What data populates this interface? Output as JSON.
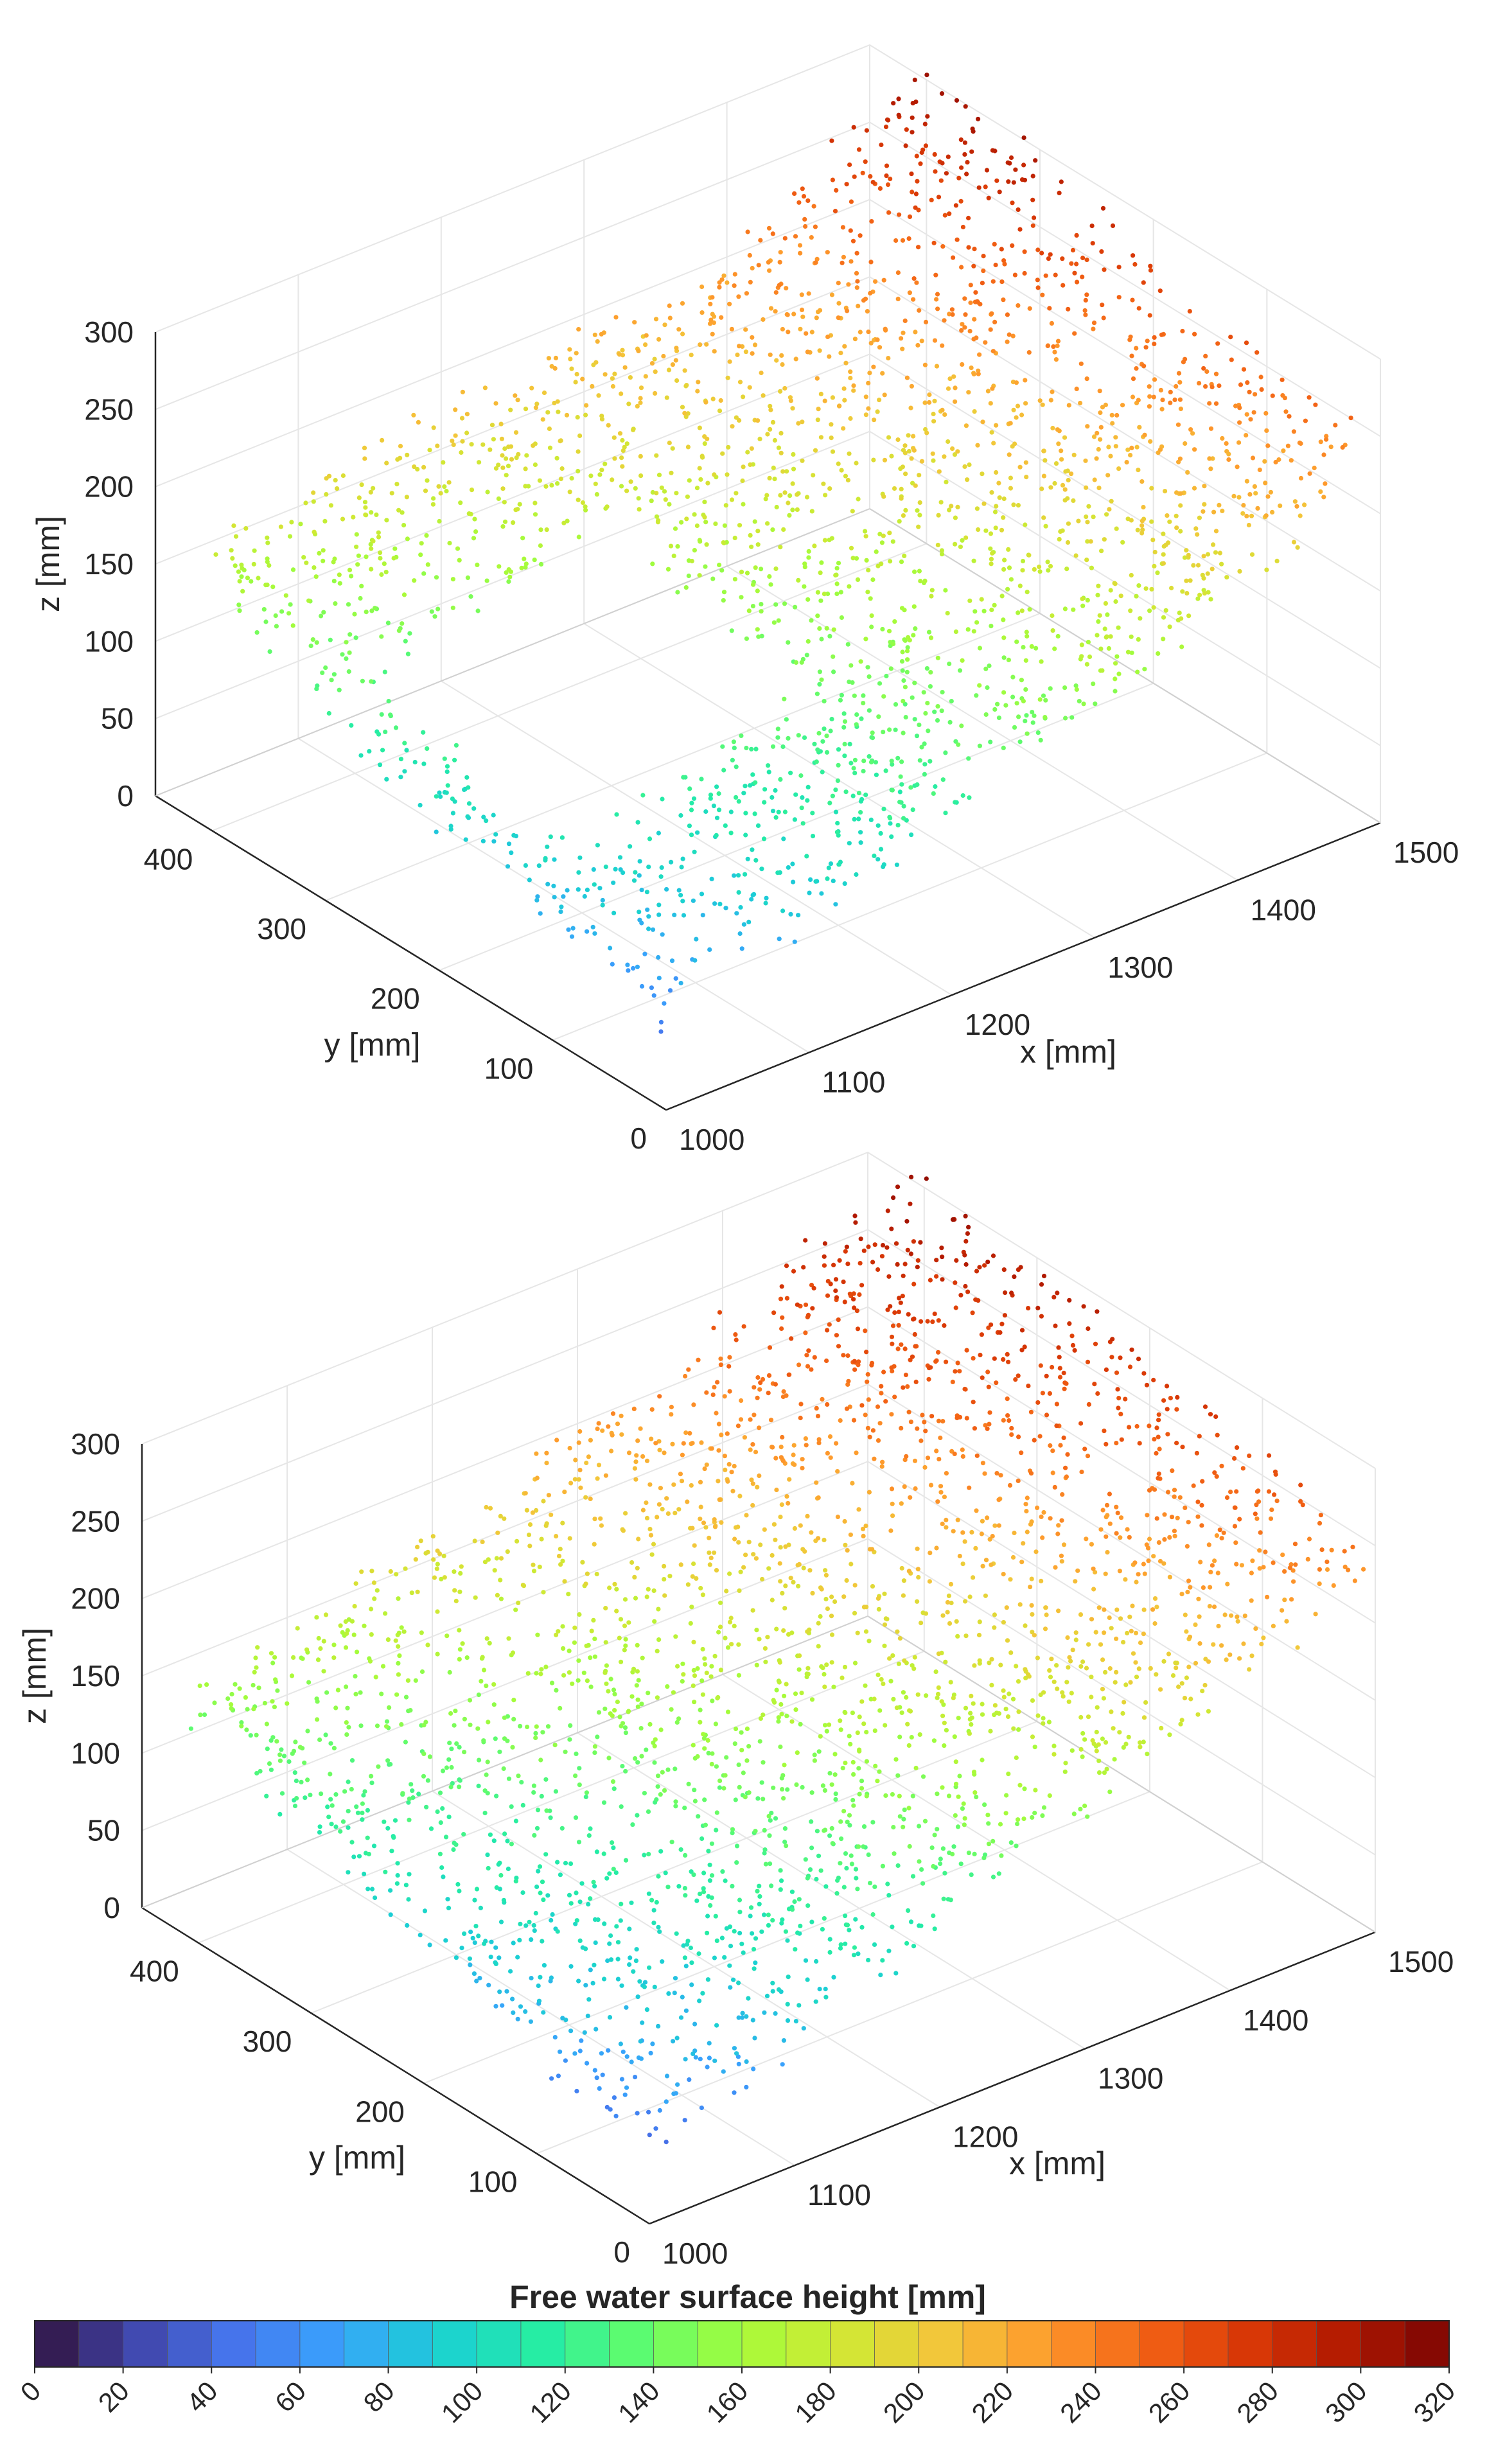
{
  "chart_data": [
    {
      "type": "scatter",
      "projection": "3d",
      "panel": "top",
      "xlabel": "x [mm]",
      "ylabel": "y [mm]",
      "zlabel": "z [mm]",
      "xlim": [
        1000,
        1500
      ],
      "ylim": [
        0,
        450
      ],
      "zlim": [
        0,
        300
      ],
      "xticks": [
        "1000",
        "1100",
        "1200",
        "1300",
        "1400",
        "1500"
      ],
      "yticks": [
        "0",
        "100",
        "200",
        "300",
        "400"
      ],
      "zticks": [
        "0",
        "50",
        "100",
        "150",
        "200",
        "250",
        "300"
      ],
      "grid": true,
      "color_variable": "z",
      "surface_heights": [
        [
          60,
          90,
          120,
          155,
          190,
          235
        ],
        [
          85,
          110,
          135,
          165,
          200,
          250
        ],
        [
          100,
          120,
          150,
          180,
          210,
          270
        ],
        [
          130,
          150,
          175,
          200,
          230,
          290
        ],
        [
          165,
          190,
          205,
          215,
          240,
          300
        ]
      ],
      "grid_x": [
        1000,
        1100,
        1200,
        1300,
        1400,
        1500
      ],
      "grid_y": [
        0,
        100,
        200,
        300,
        400
      ]
    },
    {
      "type": "scatter",
      "projection": "3d",
      "panel": "bottom",
      "xlabel": "x [mm]",
      "ylabel": "y [mm]",
      "zlabel": "z [mm]",
      "xlim": [
        1000,
        1500
      ],
      "ylim": [
        0,
        450
      ],
      "zlim": [
        0,
        300
      ],
      "xticks": [
        "1000",
        "1100",
        "1200",
        "1300",
        "1400",
        "1500"
      ],
      "yticks": [
        "0",
        "100",
        "200",
        "300",
        "400"
      ],
      "zticks": [
        "0",
        "50",
        "100",
        "150",
        "200",
        "250",
        "300"
      ],
      "grid": true,
      "color_variable": "z",
      "surface_heights": [
        [
          50,
          85,
          120,
          160,
          200,
          240
        ],
        [
          70,
          105,
          140,
          175,
          215,
          260
        ],
        [
          95,
          125,
          155,
          190,
          230,
          275
        ],
        [
          120,
          145,
          175,
          210,
          250,
          290
        ],
        [
          150,
          175,
          200,
          230,
          265,
          305
        ]
      ],
      "grid_x": [
        1000,
        1100,
        1200,
        1300,
        1400,
        1500
      ],
      "grid_y": [
        0,
        100,
        200,
        300,
        400
      ]
    }
  ],
  "colorbar": {
    "title": "Free water surface height [mm]",
    "min": 0,
    "max": 320,
    "step": 10,
    "ticks": [
      "0",
      "20",
      "40",
      "60",
      "80",
      "100",
      "120",
      "140",
      "160",
      "180",
      "200",
      "220",
      "240",
      "260",
      "280",
      "300",
      "320"
    ],
    "colormap": "turbo",
    "colors": [
      "#30123b",
      "#4145ab",
      "#4675ed",
      "#39a2fc",
      "#1bcfd4",
      "#24eca6",
      "#61fc6c",
      "#a4fc3b",
      "#d1e834",
      "#f3c63a",
      "#fe9b2d",
      "#f36315",
      "#d93806",
      "#b11901",
      "#7a0403"
    ]
  }
}
